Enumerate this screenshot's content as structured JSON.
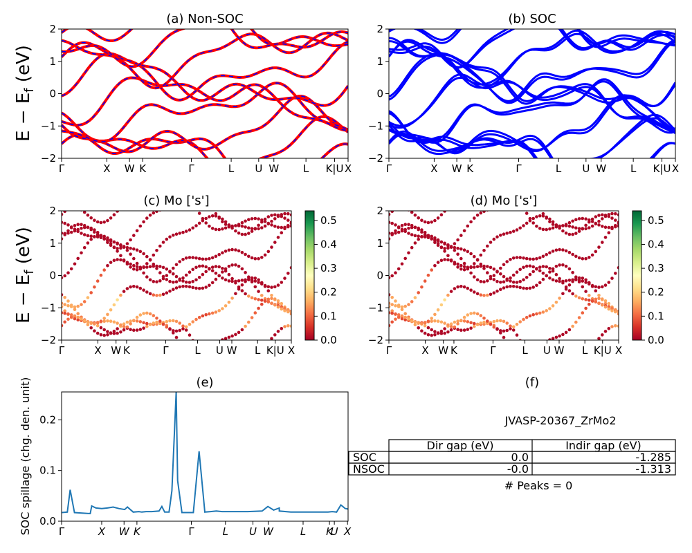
{
  "panels": {
    "a": {
      "title": "(a) Non-SOC"
    },
    "b": {
      "title": "(b) SOC"
    },
    "c": {
      "title": "(c)  Mo ['s']"
    },
    "d": {
      "title": "(d) Mo ['s']"
    },
    "e": {
      "title": "(e)"
    },
    "f": {
      "title": "(f)"
    }
  },
  "band_ylabel": "E − E_f (eV)",
  "kpath": {
    "full": [
      "Γ",
      "X",
      "W",
      "K",
      "Γ",
      "L",
      "U",
      "W",
      "L",
      "K|U",
      "X"
    ],
    "full_pos": [
      0,
      0.158,
      0.237,
      0.283,
      0.453,
      0.592,
      0.688,
      0.741,
      0.853,
      0.953,
      1.0
    ],
    "compact_pos": [
      0,
      0.158,
      0.237,
      0.283,
      0.453,
      0.592,
      0.688,
      0.741,
      0.853,
      0.93,
      1.0
    ],
    "compact": [
      "Γ",
      "X",
      "W",
      "K",
      "Γ",
      "L",
      "U",
      "W",
      "L",
      "K",
      "U",
      "X"
    ],
    "compact_pos2": [
      0,
      0.14,
      0.218,
      0.263,
      0.453,
      0.572,
      0.668,
      0.721,
      0.843,
      0.935,
      0.952,
      0.998
    ]
  },
  "colorbar": {
    "ticks": [
      "0.0",
      "0.1",
      "0.2",
      "0.3",
      "0.4",
      "0.5"
    ],
    "min": 0,
    "max": 0.54
  },
  "chart_data": [
    {
      "type": "line",
      "title": "(a) Non-SOC",
      "ylabel": "E − E_f (eV)",
      "ylim": [
        -2,
        2
      ],
      "yticks": [
        "−2",
        "−1",
        "0",
        "1",
        "2"
      ],
      "x_ticks": [
        "Γ",
        "X",
        "W",
        "K",
        "Γ",
        "L",
        "U",
        "W",
        "L",
        "K|U",
        "X"
      ],
      "series": [
        {
          "name": "",
          "color": "#ff0000",
          "dash_color": "#0000ff"
        }
      ]
    },
    {
      "type": "line",
      "title": "(b) SOC",
      "ylim": [
        -2,
        2
      ],
      "yticks": [
        "−2",
        "−1",
        "0",
        "1",
        "2"
      ],
      "x_ticks": [
        "Γ",
        "X",
        "W",
        "K",
        "Γ",
        "L",
        "U",
        "W",
        "L",
        "K|U",
        "X"
      ],
      "series": [
        {
          "name": "",
          "color": "#0000ff"
        }
      ]
    },
    {
      "type": "scatter",
      "title": "(c)  Mo ['s']",
      "ylabel": "E − E_f (eV)",
      "ylim": [
        -2,
        2
      ],
      "yticks": [
        "−2",
        "−1",
        "0",
        "1",
        "2"
      ],
      "colorbar_range": [
        0,
        0.54
      ]
    },
    {
      "type": "scatter",
      "title": "(d) Mo ['s']",
      "ylim": [
        -2,
        2
      ],
      "yticks": [
        "−2",
        "−1",
        "0",
        "1",
        "2"
      ],
      "colorbar_range": [
        0,
        0.54
      ]
    },
    {
      "type": "line",
      "title": "(e)",
      "ylabel": "SOC spillage (chg. den. unit)",
      "ylim": [
        0,
        0.255
      ],
      "yticks": [
        "0.0",
        "0.1",
        "0.2"
      ],
      "x_ticks": [
        "Γ",
        "X",
        "W",
        "K",
        "Γ",
        "L",
        "U",
        "W",
        "L",
        "K",
        "U",
        "X"
      ],
      "x": [
        0,
        0.02,
        0.03,
        0.045,
        0.1,
        0.105,
        0.12,
        0.14,
        0.16,
        0.18,
        0.2,
        0.22,
        0.23,
        0.25,
        0.27,
        0.28,
        0.295,
        0.315,
        0.34,
        0.35,
        0.36,
        0.375,
        0.385,
        0.4,
        0.405,
        0.42,
        0.46,
        0.48,
        0.5,
        0.52,
        0.54,
        0.56,
        0.6,
        0.65,
        0.7,
        0.72,
        0.74,
        0.76,
        0.76,
        0.8,
        0.86,
        0.9,
        0.93,
        0.945,
        0.96,
        0.975,
        0.99,
        1.0
      ],
      "values": [
        0.017,
        0.018,
        0.062,
        0.017,
        0.015,
        0.03,
        0.026,
        0.025,
        0.026,
        0.028,
        0.025,
        0.023,
        0.028,
        0.018,
        0.019,
        0.018,
        0.019,
        0.019,
        0.02,
        0.029,
        0.018,
        0.018,
        0.06,
        0.255,
        0.08,
        0.017,
        0.017,
        0.138,
        0.018,
        0.019,
        0.02,
        0.019,
        0.019,
        0.019,
        0.02,
        0.029,
        0.022,
        0.026,
        0.02,
        0.018,
        0.018,
        0.018,
        0.018,
        0.019,
        0.018,
        0.032,
        0.025,
        0.024
      ],
      "series": [
        {
          "name": "",
          "color": "#1f77b4"
        }
      ]
    },
    {
      "type": "table",
      "title": "(f)",
      "caption": "JVASP-20367_ZrMo2",
      "columns": [
        "",
        "Dir gap (eV)",
        "Indir gap (eV)"
      ],
      "rows": [
        [
          "SOC",
          "0.0",
          "-1.285"
        ],
        [
          "NSOC",
          "-0.0",
          "-1.313"
        ]
      ],
      "footer": "# Peaks = 0"
    }
  ]
}
